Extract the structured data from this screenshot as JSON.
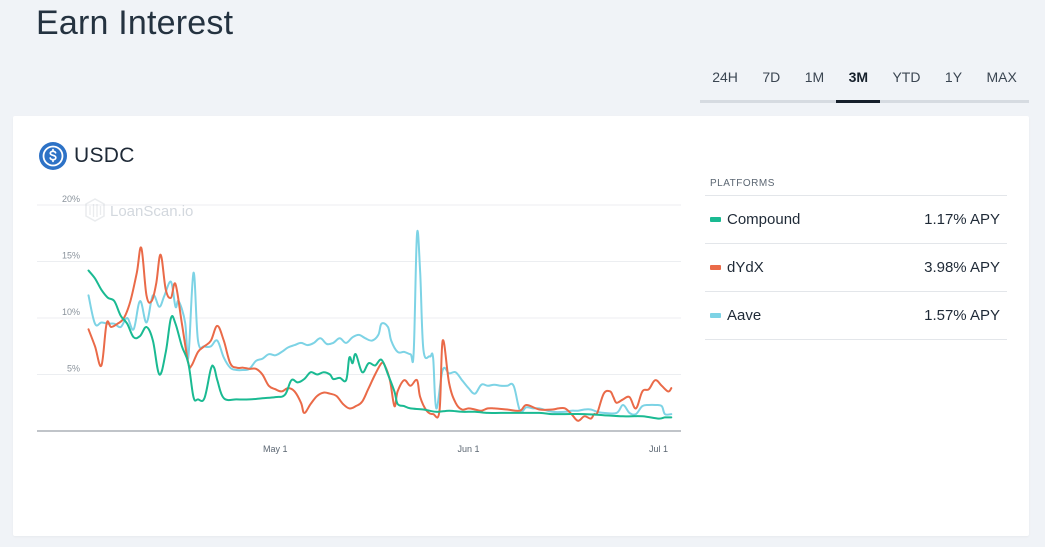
{
  "page": {
    "title": "Earn Interest"
  },
  "time_range": {
    "tabs": [
      "24H",
      "7D",
      "1M",
      "3M",
      "YTD",
      "1Y",
      "MAX"
    ],
    "active": "3M"
  },
  "card": {
    "asset": {
      "name": "USDC",
      "icon": "usdc-coin-icon"
    },
    "watermark": "LoanScan.io",
    "legend": {
      "heading": "PLATFORMS",
      "items": [
        {
          "name": "Compound",
          "value": "1.17% APY",
          "color": "#1aba92"
        },
        {
          "name": "dYdX",
          "value": "3.98% APY",
          "color": "#ea6a48"
        },
        {
          "name": "Aave",
          "value": "1.57% APY",
          "color": "#7dd3e5"
        }
      ]
    }
  },
  "chart_data": {
    "type": "line",
    "y_ticks": [
      "20%",
      "15%",
      "10%",
      "5%"
    ],
    "y_tick_values": [
      20,
      15,
      10,
      5
    ],
    "x_ticks": [
      "May 1",
      "Jun 1",
      "Jul 1"
    ],
    "x_tick_positions": [
      37,
      67,
      96.5
    ],
    "ylim": [
      0,
      20
    ],
    "xlim": [
      0,
      100
    ],
    "grid": true,
    "series": [
      {
        "name": "Compound",
        "color": "#1aba92",
        "points": [
          [
            8,
            14.2
          ],
          [
            9,
            13.5
          ],
          [
            10,
            12.5
          ],
          [
            11,
            11.8
          ],
          [
            12,
            11.5
          ],
          [
            13,
            10.2
          ],
          [
            14,
            9.5
          ],
          [
            15,
            8.3
          ],
          [
            16,
            8.4
          ],
          [
            17,
            9.2
          ],
          [
            18,
            8.0
          ],
          [
            19,
            5.0
          ],
          [
            20,
            7.0
          ],
          [
            20.8,
            10.0
          ],
          [
            21.5,
            9.5
          ],
          [
            22.5,
            7.5
          ],
          [
            23.5,
            6.0
          ],
          [
            24.3,
            3.0
          ],
          [
            25,
            2.8
          ],
          [
            26,
            2.9
          ],
          [
            27,
            5.5
          ],
          [
            27.5,
            5.6
          ],
          [
            28,
            4.5
          ],
          [
            29,
            2.9
          ],
          [
            31,
            2.8
          ],
          [
            33,
            2.8
          ],
          [
            35,
            2.9
          ],
          [
            37,
            3.0
          ],
          [
            38.5,
            3.2
          ],
          [
            39.5,
            4.5
          ],
          [
            40.5,
            4.3
          ],
          [
            41.5,
            4.6
          ],
          [
            42.5,
            5.2
          ],
          [
            43.5,
            5.0
          ],
          [
            44.5,
            5.2
          ],
          [
            45.5,
            5.0
          ],
          [
            46,
            4.6
          ],
          [
            47,
            4.7
          ],
          [
            48,
            4.5
          ],
          [
            48.5,
            6.5
          ],
          [
            49,
            6.0
          ],
          [
            49.5,
            6.8
          ],
          [
            50.5,
            5.2
          ],
          [
            51.5,
            6.0
          ],
          [
            52.5,
            5.8
          ],
          [
            53.5,
            6.3
          ],
          [
            54.5,
            5.0
          ],
          [
            55.5,
            3.5
          ],
          [
            56,
            2.4
          ],
          [
            57,
            2.2
          ],
          [
            58,
            2.0
          ],
          [
            60,
            1.9
          ],
          [
            62,
            1.7
          ],
          [
            64,
            1.8
          ],
          [
            66,
            1.7
          ],
          [
            68,
            1.7
          ],
          [
            70,
            1.6
          ],
          [
            72,
            1.6
          ],
          [
            75,
            1.6
          ],
          [
            78,
            1.6
          ],
          [
            80,
            1.5
          ],
          [
            82,
            1.5
          ],
          [
            85,
            1.5
          ],
          [
            88,
            1.4
          ],
          [
            91,
            1.3
          ],
          [
            94,
            1.3
          ],
          [
            96.5,
            1.1
          ],
          [
            97.5,
            1.2
          ],
          [
            98.5,
            1.2
          ]
        ]
      },
      {
        "name": "dYdX",
        "color": "#ea6a48",
        "points": [
          [
            8,
            9.0
          ],
          [
            9,
            7.5
          ],
          [
            10,
            5.8
          ],
          [
            10.8,
            9.5
          ],
          [
            11.5,
            9.2
          ],
          [
            12.5,
            9.5
          ],
          [
            13.5,
            10.0
          ],
          [
            14.5,
            11.5
          ],
          [
            15.5,
            14.0
          ],
          [
            16.2,
            16.2
          ],
          [
            17,
            12.0
          ],
          [
            17.8,
            11.5
          ],
          [
            18.5,
            13.0
          ],
          [
            19.2,
            15.6
          ],
          [
            20,
            12.5
          ],
          [
            20.8,
            11.8
          ],
          [
            21.5,
            13.0
          ],
          [
            22.5,
            9.5
          ],
          [
            23.5,
            6.0
          ],
          [
            24,
            5.8
          ],
          [
            25,
            7.0
          ],
          [
            26,
            7.5
          ],
          [
            27,
            8.0
          ],
          [
            28,
            9.3
          ],
          [
            29,
            8.0
          ],
          [
            30,
            6.0
          ],
          [
            31,
            5.6
          ],
          [
            32,
            5.6
          ],
          [
            33,
            5.5
          ],
          [
            34,
            5.5
          ],
          [
            35,
            5.0
          ],
          [
            36,
            4.0
          ],
          [
            37,
            3.7
          ],
          [
            38,
            3.5
          ],
          [
            39,
            3.8
          ],
          [
            40,
            3.5
          ],
          [
            41,
            2.5
          ],
          [
            41.5,
            1.6
          ],
          [
            42.5,
            2.4
          ],
          [
            43.5,
            3.1
          ],
          [
            44.5,
            3.4
          ],
          [
            45.5,
            3.3
          ],
          [
            46.5,
            3.1
          ],
          [
            47.5,
            2.4
          ],
          [
            48.5,
            2.0
          ],
          [
            49.5,
            2.2
          ],
          [
            50.5,
            2.6
          ],
          [
            51.5,
            3.8
          ],
          [
            52.5,
            5.0
          ],
          [
            53.5,
            6.0
          ],
          [
            54,
            5.8
          ],
          [
            54.8,
            4.5
          ],
          [
            55.5,
            2.2
          ],
          [
            56,
            3.5
          ],
          [
            57,
            4.5
          ],
          [
            58,
            4.0
          ],
          [
            59,
            4.5
          ],
          [
            59.5,
            3.0
          ],
          [
            60.5,
            1.8
          ],
          [
            61.5,
            1.5
          ],
          [
            62.5,
            1.8
          ],
          [
            63,
            8.0
          ],
          [
            64,
            4.2
          ],
          [
            65,
            2.5
          ],
          [
            66,
            1.9
          ],
          [
            67,
            2.0
          ],
          [
            68,
            1.9
          ],
          [
            69,
            1.8
          ],
          [
            70,
            2.0
          ],
          [
            71,
            2.0
          ],
          [
            73,
            1.9
          ],
          [
            75,
            1.8
          ],
          [
            76,
            2.3
          ],
          [
            78,
            1.9
          ],
          [
            80,
            1.9
          ],
          [
            81,
            2.0
          ],
          [
            82,
            2.0
          ],
          [
            83,
            1.5
          ],
          [
            84,
            0.9
          ],
          [
            85,
            1.3
          ],
          [
            86,
            1.1
          ],
          [
            86.5,
            1.5
          ],
          [
            87,
            1.6
          ],
          [
            88,
            3.3
          ],
          [
            89,
            3.5
          ],
          [
            89.5,
            3.0
          ],
          [
            90,
            2.5
          ],
          [
            91,
            2.8
          ],
          [
            92,
            3.0
          ],
          [
            93,
            2.0
          ],
          [
            94,
            3.5
          ],
          [
            95,
            3.7
          ],
          [
            96,
            4.5
          ],
          [
            97,
            4.0
          ],
          [
            98,
            3.5
          ],
          [
            98.5,
            3.8
          ]
        ]
      },
      {
        "name": "Aave",
        "color": "#7dd3e5",
        "points": [
          [
            8,
            12.0
          ],
          [
            9,
            9.5
          ],
          [
            10,
            9.6
          ],
          [
            11,
            9.5
          ],
          [
            12,
            9.5
          ],
          [
            13,
            9.2
          ],
          [
            14,
            10.0
          ],
          [
            15,
            9.0
          ],
          [
            16,
            11.5
          ],
          [
            17,
            9.6
          ],
          [
            18,
            12.0
          ],
          [
            19,
            11.0
          ],
          [
            19.8,
            12.0
          ],
          [
            20.8,
            13.2
          ],
          [
            21.5,
            11.0
          ],
          [
            22,
            11.5
          ],
          [
            23,
            9.6
          ],
          [
            23.5,
            6.5
          ],
          [
            24.3,
            14.0
          ],
          [
            25,
            8.0
          ],
          [
            26,
            7.5
          ],
          [
            27,
            7.5
          ],
          [
            28,
            8.0
          ],
          [
            29,
            6.5
          ],
          [
            30,
            5.6
          ],
          [
            31,
            5.4
          ],
          [
            32,
            5.4
          ],
          [
            33,
            5.5
          ],
          [
            34,
            6.2
          ],
          [
            35,
            6.4
          ],
          [
            36,
            6.8
          ],
          [
            37,
            6.7
          ],
          [
            38,
            7.0
          ],
          [
            39,
            7.4
          ],
          [
            40,
            7.6
          ],
          [
            41,
            7.8
          ],
          [
            42,
            7.6
          ],
          [
            43,
            7.8
          ],
          [
            44,
            8.2
          ],
          [
            45,
            7.7
          ],
          [
            46,
            7.8
          ],
          [
            47,
            8.2
          ],
          [
            48,
            7.8
          ],
          [
            49,
            8.3
          ],
          [
            50,
            8.5
          ],
          [
            51,
            8.2
          ],
          [
            52,
            8.0
          ],
          [
            53,
            8.5
          ],
          [
            53.5,
            9.5
          ],
          [
            54.5,
            9.2
          ],
          [
            55,
            8.0
          ],
          [
            56,
            7.0
          ],
          [
            57,
            7.0
          ],
          [
            58,
            6.8
          ],
          [
            58.5,
            7.0
          ],
          [
            59,
            17.4
          ],
          [
            59.5,
            14.0
          ],
          [
            60,
            7.2
          ],
          [
            61,
            6.6
          ],
          [
            61.5,
            6.5
          ],
          [
            62,
            2.0
          ],
          [
            63,
            5.4
          ],
          [
            64,
            5.1
          ],
          [
            65,
            5.2
          ],
          [
            66,
            4.5
          ],
          [
            67,
            3.8
          ],
          [
            68,
            3.3
          ],
          [
            69,
            4.1
          ],
          [
            70,
            4.0
          ],
          [
            71,
            4.1
          ],
          [
            72,
            4.0
          ],
          [
            73,
            4.0
          ],
          [
            74,
            4.0
          ],
          [
            75,
            1.8
          ],
          [
            76,
            2.1
          ],
          [
            77,
            2.0
          ],
          [
            78,
            2.0
          ],
          [
            80,
            1.7
          ],
          [
            82,
            1.7
          ],
          [
            83,
            1.8
          ],
          [
            84,
            1.8
          ],
          [
            85,
            1.9
          ],
          [
            86,
            1.9
          ],
          [
            87,
            1.7
          ],
          [
            88,
            1.6
          ],
          [
            90,
            1.6
          ],
          [
            91,
            2.3
          ],
          [
            92,
            1.6
          ],
          [
            93,
            1.5
          ],
          [
            94,
            2.2
          ],
          [
            95,
            2.3
          ],
          [
            96,
            2.3
          ],
          [
            97,
            2.2
          ],
          [
            97.5,
            1.5
          ],
          [
            98.5,
            1.5
          ]
        ]
      }
    ]
  }
}
